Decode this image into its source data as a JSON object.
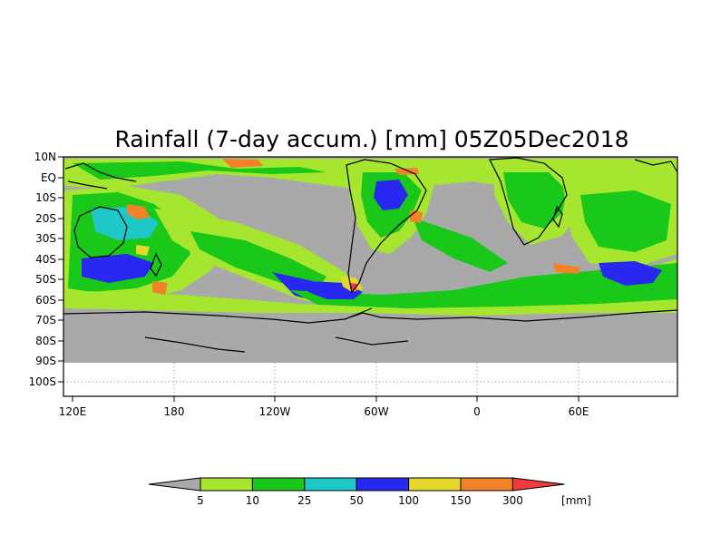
{
  "title": "Rainfall (7-day accum.) [mm] 05Z05Dec2018",
  "map": {
    "lat_labels": [
      "10N",
      "EQ",
      "10S",
      "20S",
      "30S",
      "40S",
      "50S",
      "60S",
      "70S",
      "80S",
      "90S",
      "100S"
    ],
    "lon_labels": [
      "120E",
      "180",
      "120W",
      "60W",
      "0",
      "60E"
    ]
  },
  "legend": {
    "thresholds": [
      "5",
      "10",
      "25",
      "50",
      "100",
      "150",
      "300"
    ],
    "unit": "[mm]",
    "colors": [
      "#a9a9a9",
      "#a6e62f",
      "#19c819",
      "#1ec8c8",
      "#2828f0",
      "#e6d72d",
      "#f08228",
      "#f03c3c"
    ]
  }
}
